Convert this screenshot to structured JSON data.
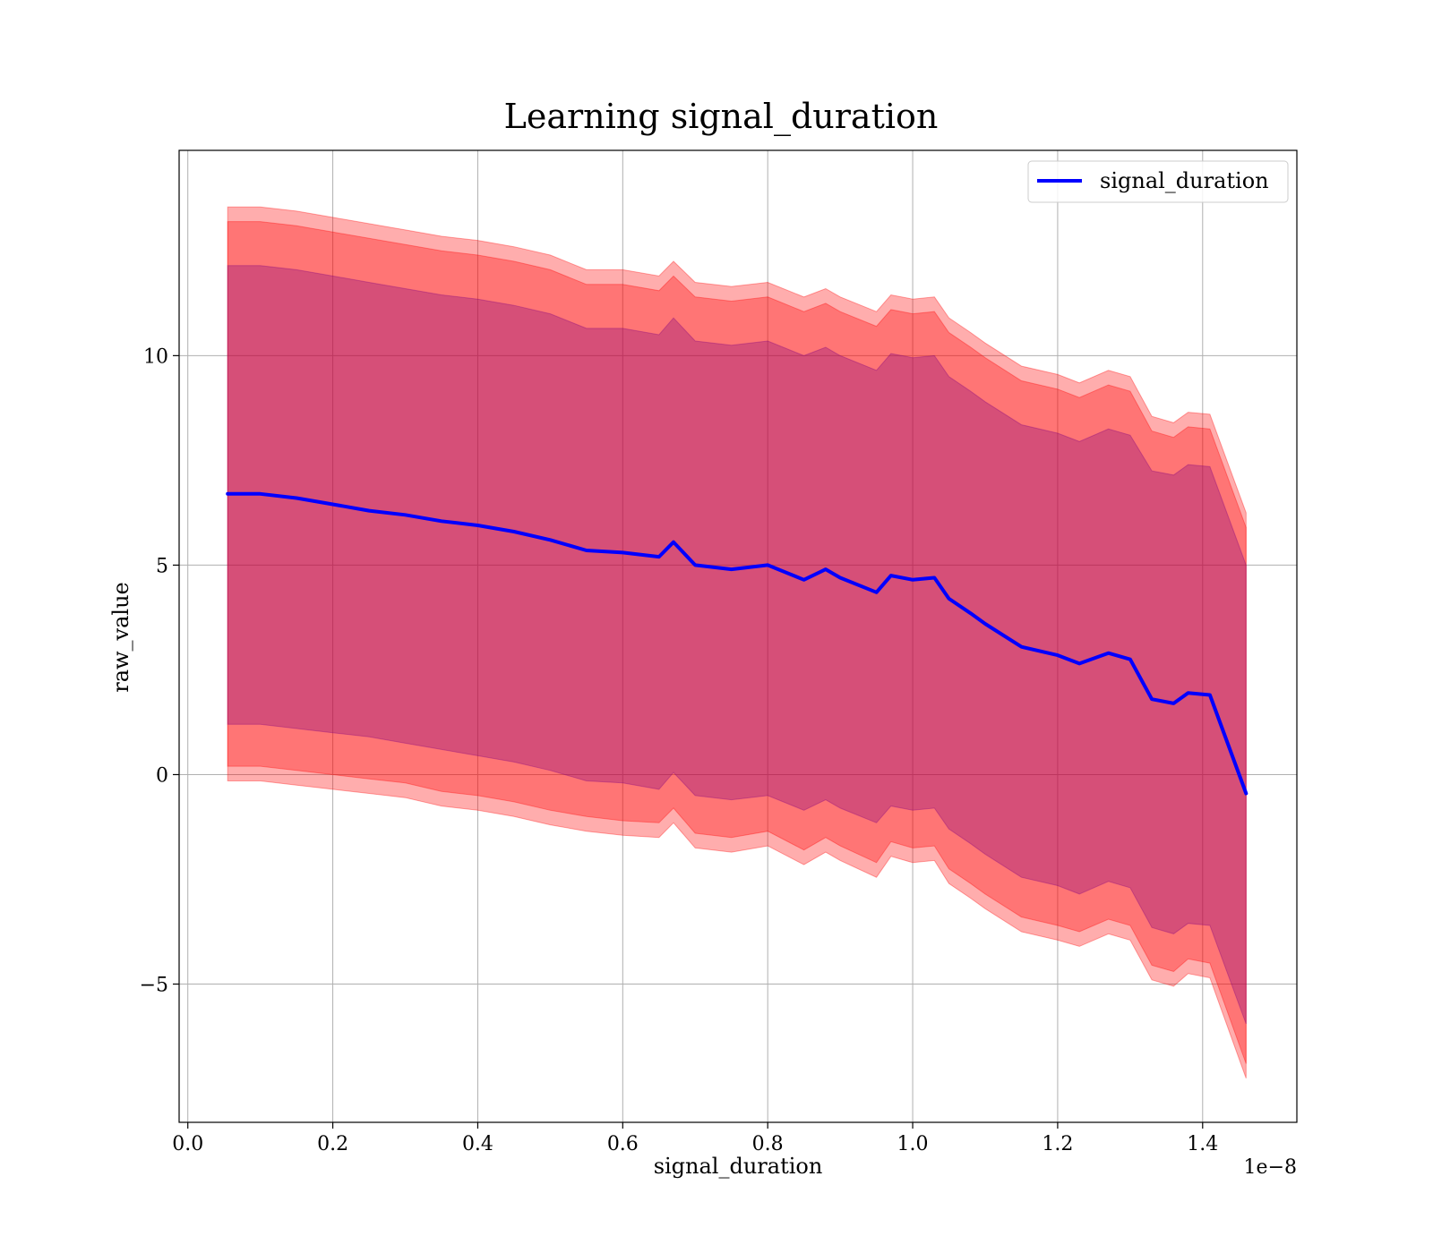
{
  "chart_data": {
    "type": "line",
    "title": "Learning signal_duration",
    "xlabel": "signal_duration",
    "ylabel": "raw_value",
    "x_offset_label": "1e−8",
    "x_scale": 1e-08,
    "xlim": [
      -0.012,
      1.53
    ],
    "ylim": [
      -8.3,
      14.9
    ],
    "xticks": [
      {
        "value": 0.0,
        "label": "0.0"
      },
      {
        "value": 0.2,
        "label": "0.2"
      },
      {
        "value": 0.4,
        "label": "0.4"
      },
      {
        "value": 0.6,
        "label": "0.6"
      },
      {
        "value": 0.8,
        "label": "0.8"
      },
      {
        "value": 1.0,
        "label": "1.0"
      },
      {
        "value": 1.2,
        "label": "1.2"
      },
      {
        "value": 1.4,
        "label": "1.4"
      }
    ],
    "yticks": [
      {
        "value": -5,
        "label": "−5"
      },
      {
        "value": 0,
        "label": "0"
      },
      {
        "value": 5,
        "label": "5"
      },
      {
        "value": 10,
        "label": "10"
      }
    ],
    "grid": true,
    "legend": {
      "placement": "top-right",
      "entries": [
        "signal_duration"
      ]
    },
    "colors": {
      "line": "#0000ff",
      "band": "#ff0000",
      "inner_band": "#800080",
      "grid": "#b0b0b0"
    },
    "x": [
      0.055,
      0.1,
      0.15,
      0.2,
      0.25,
      0.3,
      0.35,
      0.4,
      0.45,
      0.5,
      0.55,
      0.6,
      0.65,
      0.67,
      0.7,
      0.75,
      0.8,
      0.85,
      0.88,
      0.9,
      0.95,
      0.97,
      1.0,
      1.03,
      1.05,
      1.08,
      1.1,
      1.15,
      1.2,
      1.23,
      1.27,
      1.3,
      1.33,
      1.36,
      1.38,
      1.41,
      1.46
    ],
    "series": [
      {
        "name": "signal_duration",
        "values": [
          6.7,
          6.7,
          6.6,
          6.45,
          6.3,
          6.2,
          6.05,
          5.95,
          5.8,
          5.6,
          5.35,
          5.3,
          5.2,
          5.55,
          5.0,
          4.9,
          5.0,
          4.65,
          4.9,
          4.7,
          4.35,
          4.75,
          4.65,
          4.7,
          4.2,
          3.85,
          3.6,
          3.05,
          2.85,
          2.65,
          2.9,
          2.75,
          1.8,
          1.7,
          1.95,
          1.9,
          -0.45
        ]
      }
    ],
    "bands": [
      {
        "lower": [
          -0.15,
          -0.15,
          -0.25,
          -0.35,
          -0.45,
          -0.55,
          -0.75,
          -0.85,
          -1.0,
          -1.2,
          -1.35,
          -1.45,
          -1.5,
          -1.15,
          -1.75,
          -1.85,
          -1.7,
          -2.15,
          -1.85,
          -2.05,
          -2.45,
          -1.95,
          -2.1,
          -2.05,
          -2.6,
          -2.95,
          -3.2,
          -3.75,
          -3.95,
          -4.1,
          -3.8,
          -3.95,
          -4.9,
          -5.05,
          -4.75,
          -4.85,
          -7.25
        ],
        "upper": [
          13.55,
          13.55,
          13.45,
          13.3,
          13.15,
          13.0,
          12.85,
          12.75,
          12.6,
          12.4,
          12.05,
          12.05,
          11.9,
          12.25,
          11.75,
          11.65,
          11.75,
          11.4,
          11.6,
          11.4,
          11.05,
          11.45,
          11.35,
          11.4,
          10.9,
          10.55,
          10.3,
          9.75,
          9.55,
          9.35,
          9.65,
          9.5,
          8.55,
          8.4,
          8.65,
          8.6,
          6.25
        ]
      },
      {
        "lower": [
          0.2,
          0.2,
          0.1,
          0.0,
          -0.1,
          -0.2,
          -0.4,
          -0.5,
          -0.65,
          -0.85,
          -1.0,
          -1.1,
          -1.15,
          -0.8,
          -1.4,
          -1.5,
          -1.35,
          -1.8,
          -1.5,
          -1.7,
          -2.1,
          -1.6,
          -1.75,
          -1.7,
          -2.25,
          -2.6,
          -2.85,
          -3.4,
          -3.6,
          -3.75,
          -3.45,
          -3.6,
          -4.55,
          -4.7,
          -4.4,
          -4.5,
          -6.9
        ],
        "upper": [
          13.2,
          13.2,
          13.1,
          12.95,
          12.8,
          12.65,
          12.5,
          12.4,
          12.25,
          12.05,
          11.7,
          11.7,
          11.55,
          11.9,
          11.4,
          11.3,
          11.4,
          11.05,
          11.25,
          11.05,
          10.7,
          11.1,
          11.0,
          11.05,
          10.55,
          10.2,
          9.95,
          9.4,
          9.2,
          9.0,
          9.3,
          9.15,
          8.2,
          8.05,
          8.3,
          8.25,
          5.9
        ]
      },
      {
        "lower": [
          1.2,
          1.2,
          1.1,
          1.0,
          0.9,
          0.75,
          0.6,
          0.45,
          0.3,
          0.1,
          -0.15,
          -0.2,
          -0.35,
          0.05,
          -0.5,
          -0.6,
          -0.5,
          -0.85,
          -0.6,
          -0.8,
          -1.15,
          -0.75,
          -0.85,
          -0.8,
          -1.3,
          -1.65,
          -1.9,
          -2.45,
          -2.65,
          -2.85,
          -2.55,
          -2.7,
          -3.65,
          -3.8,
          -3.55,
          -3.6,
          -5.95
        ],
        "upper": [
          12.15,
          12.15,
          12.05,
          11.9,
          11.75,
          11.6,
          11.45,
          11.35,
          11.2,
          11.0,
          10.65,
          10.65,
          10.5,
          10.9,
          10.35,
          10.25,
          10.35,
          10.0,
          10.2,
          10.0,
          9.65,
          10.05,
          9.95,
          10.0,
          9.5,
          9.15,
          8.9,
          8.35,
          8.15,
          7.95,
          8.25,
          8.1,
          7.25,
          7.15,
          7.4,
          7.35,
          5.0
        ]
      }
    ]
  }
}
